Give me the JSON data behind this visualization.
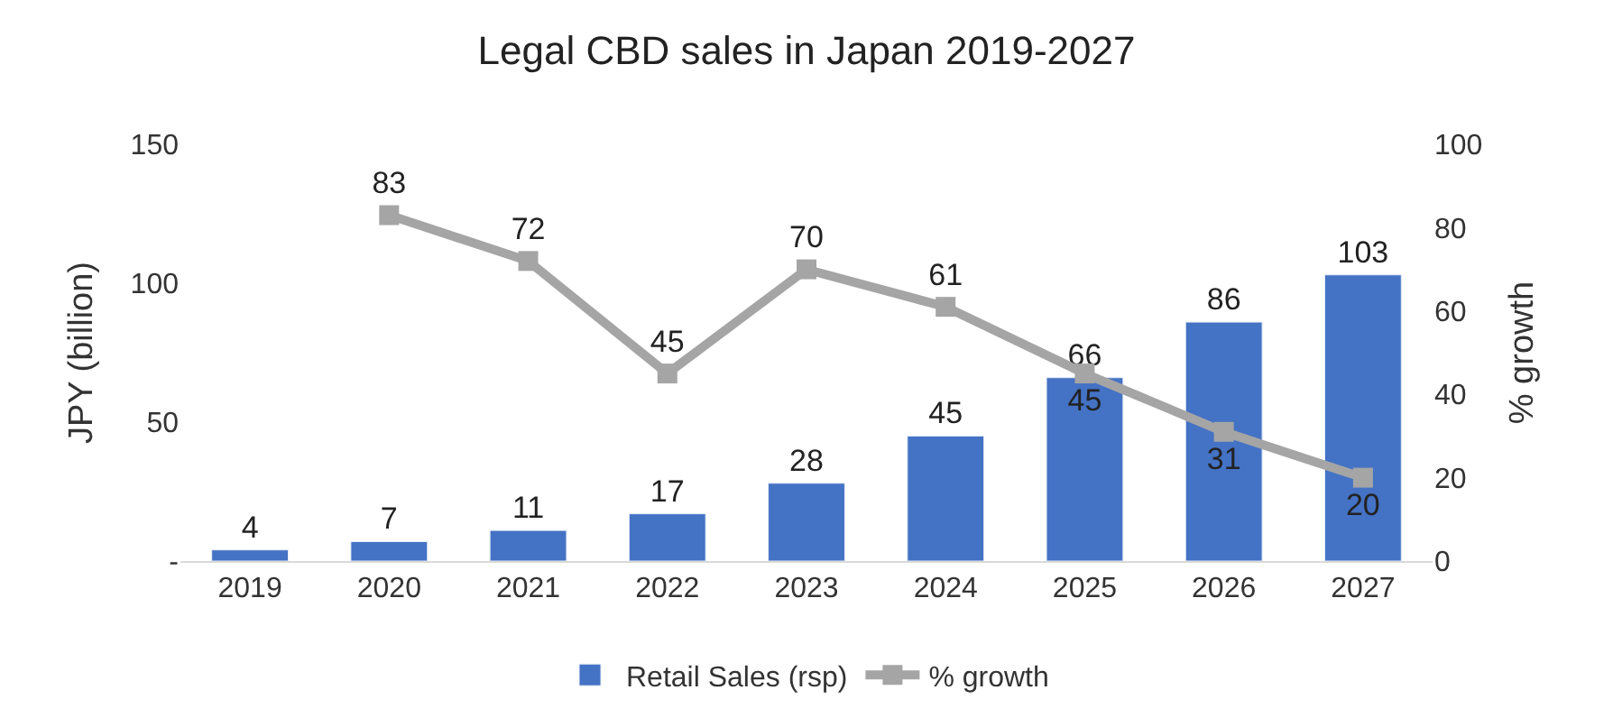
{
  "chart_data": {
    "type": "bar",
    "title": "Legal CBD sales in Japan 2019-2027",
    "ylabel": "JPY (billion)",
    "y2label": "% growth",
    "categories": [
      "2019",
      "2020",
      "2021",
      "2022",
      "2023",
      "2024",
      "2025",
      "2026",
      "2027"
    ],
    "series": [
      {
        "name": "Retail Sales (rsp)",
        "color": "#4472c4",
        "values": [
          4,
          7,
          11,
          17,
          28,
          45,
          66,
          86,
          103
        ]
      },
      {
        "name": "% growth",
        "type": "line",
        "axis": "y2",
        "color": "#a5a5a5",
        "marker": "square",
        "values": [
          null,
          83,
          72,
          45,
          70,
          61,
          45,
          31,
          20
        ]
      }
    ],
    "ylim": [
      0,
      150
    ],
    "yticks": [
      {
        "value": 0,
        "label": "-"
      },
      50,
      100,
      150
    ],
    "y2lim": [
      0,
      100
    ],
    "y2ticks": [
      0,
      20,
      40,
      60,
      80,
      100
    ],
    "data_labels": true,
    "legend": "bottom"
  }
}
